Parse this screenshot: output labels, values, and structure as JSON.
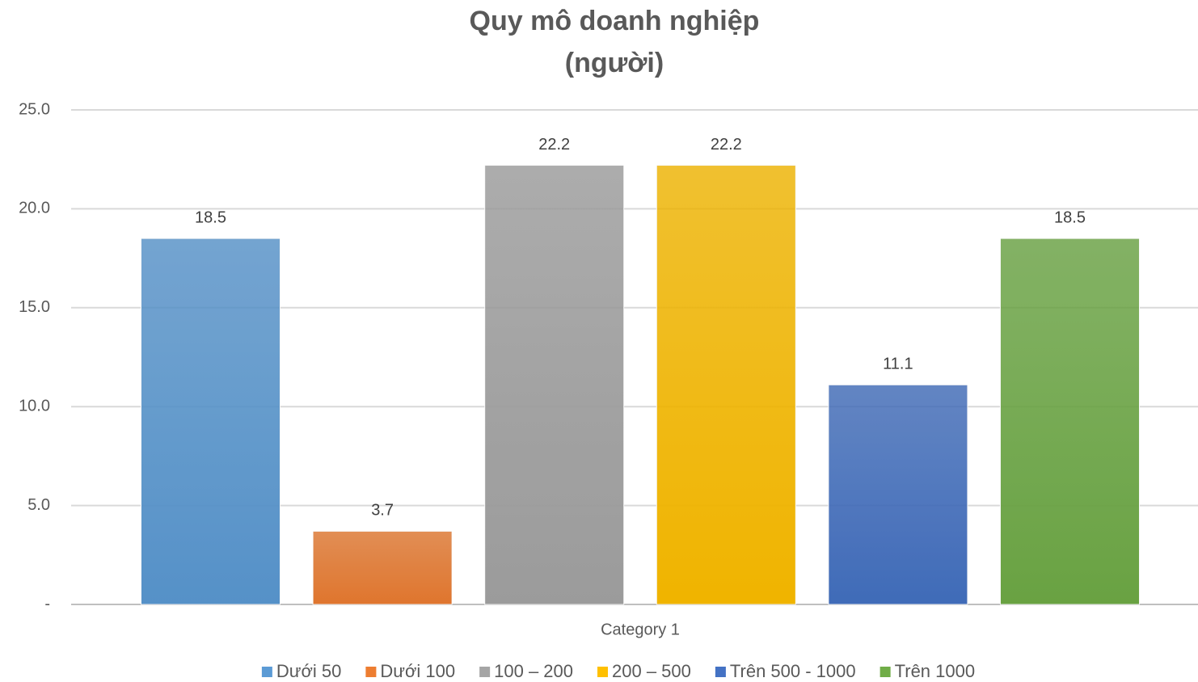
{
  "chart_data": {
    "type": "bar",
    "title": "Quy mô doanh nghiệp",
    "subtitle": "(người)",
    "categories": [
      "Category 1"
    ],
    "series": [
      {
        "name": "Dưới 50",
        "color": "#5b9bd5",
        "values": [
          18.5
        ]
      },
      {
        "name": "Dưới 100",
        "color": "#ed7d31",
        "values": [
          3.7
        ]
      },
      {
        "name": "100 – 200",
        "color": "#a5a5a5",
        "values": [
          22.2
        ]
      },
      {
        "name": "200 – 500",
        "color": "#ffc000",
        "values": [
          22.2
        ]
      },
      {
        "name": "Trên 500 - 1000",
        "color": "#4472c4",
        "values": [
          11.1
        ]
      },
      {
        "name": "Trên 1000",
        "color": "#70ad47",
        "values": [
          18.5
        ]
      }
    ],
    "ylim": [
      0,
      25
    ],
    "yticks": [
      {
        "value": 0,
        "label": "-"
      },
      {
        "value": 5,
        "label": "5.0"
      },
      {
        "value": 10,
        "label": "10.0"
      },
      {
        "value": 15,
        "label": "15.0"
      },
      {
        "value": 20,
        "label": "20.0"
      },
      {
        "value": 25,
        "label": "25.0"
      }
    ],
    "grid": true,
    "legend": "bottom"
  }
}
